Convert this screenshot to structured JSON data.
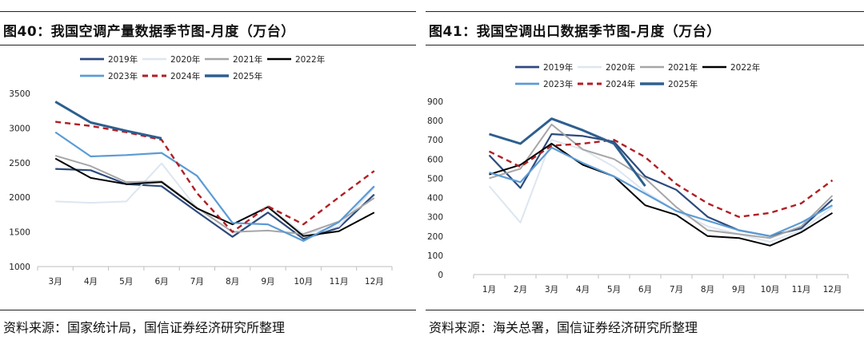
{
  "charts": [
    {
      "title": "图40：我国空调产量数据季节图-月度（万台）",
      "source": "资料来源：国家统计局，国信证券经济研究所整理"
    },
    {
      "title": "图41：我国空调出口数据季节图-月度（万台）",
      "source": "资料来源：海关总署，国信证券经济研究所整理"
    }
  ],
  "chart_data": [
    {
      "type": "line",
      "title": "图40：我国空调产量数据季节图-月度（万台）",
      "categories": [
        "3月",
        "4月",
        "5月",
        "6月",
        "7月",
        "8月",
        "9月",
        "10月",
        "11月",
        "12月"
      ],
      "ylim": [
        1000,
        3500
      ],
      "yticks": [
        "1000",
        "1500",
        "2000",
        "2500",
        "3000",
        "3500"
      ],
      "grid": false,
      "legend_position": "top",
      "series": [
        {
          "name": "2019年",
          "color": "#2c4a7c",
          "dash": "",
          "width": 2.2,
          "values": [
            2410,
            2390,
            2190,
            2160,
            1790,
            1430,
            1780,
            1400,
            1560,
            2040
          ]
        },
        {
          "name": "2020年",
          "color": "#dde6f0",
          "dash": "",
          "width": 2,
          "values": [
            1940,
            1920,
            1940,
            2490,
            1840,
            1610,
            1880,
            1470,
            1580,
            2140
          ]
        },
        {
          "name": "2021年",
          "color": "#a6a6a6",
          "dash": "",
          "width": 2,
          "values": [
            2600,
            2450,
            2220,
            2230,
            1850,
            1500,
            1520,
            1470,
            1650,
            1990
          ]
        },
        {
          "name": "2022年",
          "color": "#000000",
          "dash": "",
          "width": 2,
          "values": [
            2560,
            2280,
            2190,
            2220,
            1840,
            1610,
            1860,
            1440,
            1510,
            1780
          ]
        },
        {
          "name": "2023年",
          "color": "#5b9bd5",
          "dash": "",
          "width": 2.2,
          "values": [
            2940,
            2590,
            2610,
            2640,
            2310,
            1630,
            1610,
            1370,
            1640,
            2160
          ]
        },
        {
          "name": "2024年",
          "color": "#b01f24",
          "dash": "7,5",
          "width": 2.4,
          "values": [
            3090,
            3030,
            2940,
            2830,
            2060,
            1500,
            1870,
            1610,
            2000,
            2380
          ]
        },
        {
          "name": "2025年",
          "color": "#2e5f8f",
          "dash": "",
          "width": 3,
          "values": [
            3380,
            3080,
            2960,
            2850,
            null,
            null,
            null,
            null,
            null,
            null
          ]
        }
      ]
    },
    {
      "type": "line",
      "title": "图41：我国空调出口数据季节图-月度（万台）",
      "categories": [
        "1月",
        "2月",
        "3月",
        "4月",
        "5月",
        "6月",
        "7月",
        "8月",
        "9月",
        "10月",
        "11月",
        "12月"
      ],
      "ylim": [
        0,
        900
      ],
      "yticks": [
        "0",
        "100",
        "200",
        "300",
        "400",
        "500",
        "600",
        "700",
        "800",
        "900"
      ],
      "grid": false,
      "legend_position": "top",
      "series": [
        {
          "name": "2019年",
          "color": "#2c4a7c",
          "dash": "",
          "width": 2.2,
          "values": [
            620,
            450,
            730,
            720,
            690,
            510,
            440,
            300,
            230,
            200,
            240,
            390
          ]
        },
        {
          "name": "2020年",
          "color": "#dde6f0",
          "dash": "",
          "width": 2,
          "values": [
            460,
            270,
            700,
            650,
            560,
            430,
            330,
            250,
            210,
            170,
            230,
            350
          ]
        },
        {
          "name": "2021年",
          "color": "#a6a6a6",
          "dash": "",
          "width": 2,
          "values": [
            500,
            550,
            780,
            650,
            600,
            500,
            350,
            230,
            210,
            190,
            250,
            410
          ]
        },
        {
          "name": "2022年",
          "color": "#000000",
          "dash": "",
          "width": 2,
          "values": [
            520,
            570,
            680,
            570,
            510,
            360,
            310,
            200,
            190,
            150,
            220,
            320
          ]
        },
        {
          "name": "2023年",
          "color": "#5b9bd5",
          "dash": "",
          "width": 2.2,
          "values": [
            530,
            480,
            660,
            580,
            510,
            420,
            330,
            280,
            230,
            200,
            270,
            360
          ]
        },
        {
          "name": "2024年",
          "color": "#b01f24",
          "dash": "7,5",
          "width": 2.4,
          "values": [
            640,
            560,
            670,
            680,
            700,
            610,
            470,
            370,
            300,
            320,
            370,
            490
          ]
        },
        {
          "name": "2025年",
          "color": "#2e5f8f",
          "dash": "",
          "width": 3,
          "values": [
            730,
            680,
            810,
            750,
            680,
            460,
            null,
            null,
            null,
            null,
            null,
            null
          ]
        }
      ]
    }
  ]
}
